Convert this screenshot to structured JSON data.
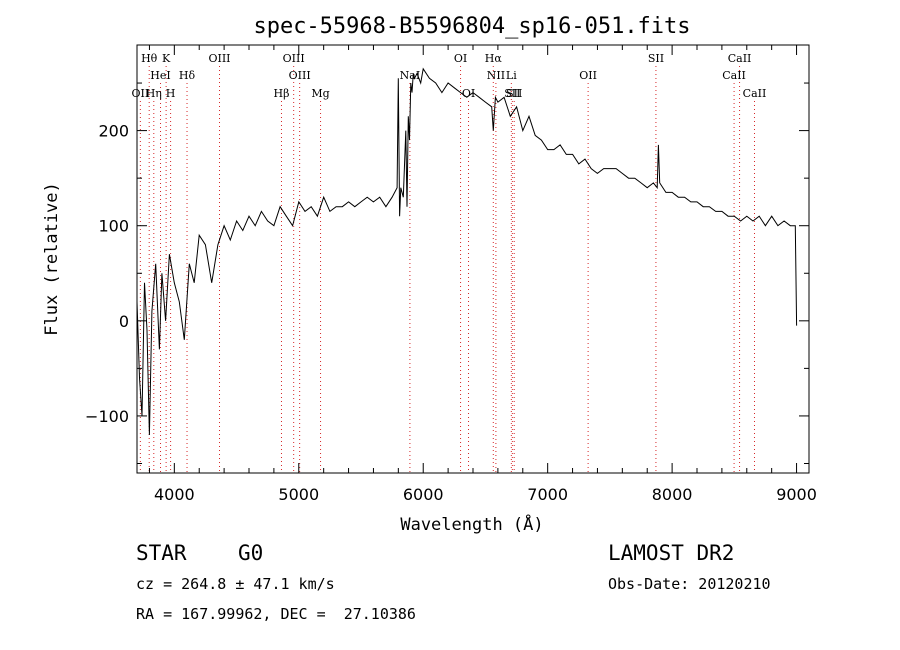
{
  "chart_data": {
    "type": "line",
    "title": "spec-55968-B5596804_sp16-051.fits",
    "xlabel": "Wavelength (Å)",
    "ylabel": "Flux (relative)",
    "xlim": [
      3700,
      9100
    ],
    "ylim": [
      -160,
      290
    ],
    "xticks": [
      4000,
      5000,
      6000,
      7000,
      8000,
      9000
    ],
    "yticks": [
      -100,
      0,
      100,
      200
    ],
    "grid": false,
    "line_color": "#000000",
    "marker_color": "#d62728",
    "series": [
      {
        "x": [
          3700,
          3720,
          3740,
          3760,
          3780,
          3800,
          3820,
          3850,
          3880,
          3900,
          3930,
          3960,
          4000,
          4040,
          4080,
          4120,
          4160,
          4200,
          4250,
          4300,
          4350,
          4400,
          4450,
          4500,
          4550,
          4600,
          4650,
          4700,
          4750,
          4800,
          4850,
          4900,
          4950,
          5000,
          5050,
          5100,
          5150,
          5200,
          5250,
          5300,
          5350,
          5400,
          5450,
          5500,
          5550,
          5600,
          5650,
          5700,
          5750,
          5790,
          5800,
          5810,
          5820,
          5840,
          5860,
          5870,
          5880,
          5890,
          5900,
          5910,
          5920,
          5930,
          5950,
          5980,
          6000,
          6050,
          6100,
          6150,
          6200,
          6250,
          6300,
          6350,
          6400,
          6450,
          6500,
          6550,
          6563,
          6580,
          6600,
          6650,
          6700,
          6750,
          6800,
          6850,
          6900,
          6950,
          7000,
          7050,
          7100,
          7150,
          7200,
          7250,
          7300,
          7350,
          7400,
          7450,
          7500,
          7550,
          7600,
          7650,
          7700,
          7750,
          7800,
          7850,
          7880,
          7890,
          7900,
          7950,
          8000,
          8050,
          8100,
          8150,
          8200,
          8250,
          8300,
          8350,
          8400,
          8450,
          8500,
          8550,
          8600,
          8650,
          8700,
          8750,
          8800,
          8850,
          8900,
          8950,
          8990,
          9000
        ],
        "y": [
          20,
          -60,
          -100,
          40,
          -10,
          -120,
          10,
          60,
          -30,
          50,
          0,
          70,
          40,
          20,
          -20,
          60,
          40,
          90,
          80,
          40,
          80,
          100,
          85,
          105,
          95,
          110,
          100,
          115,
          105,
          100,
          120,
          110,
          100,
          125,
          115,
          120,
          110,
          130,
          115,
          120,
          120,
          125,
          120,
          125,
          130,
          125,
          130,
          120,
          130,
          140,
          255,
          110,
          140,
          130,
          200,
          120,
          215,
          190,
          250,
          240,
          260,
          255,
          260,
          250,
          265,
          255,
          250,
          240,
          250,
          245,
          240,
          235,
          240,
          235,
          230,
          225,
          200,
          235,
          230,
          235,
          215,
          225,
          200,
          215,
          195,
          190,
          180,
          180,
          185,
          175,
          175,
          165,
          170,
          160,
          155,
          160,
          160,
          160,
          155,
          150,
          150,
          145,
          140,
          145,
          140,
          185,
          145,
          135,
          135,
          130,
          130,
          125,
          125,
          120,
          120,
          115,
          115,
          110,
          110,
          105,
          110,
          105,
          110,
          100,
          110,
          100,
          105,
          100,
          100,
          -5
        ]
      }
    ],
    "lines": [
      {
        "name": "Hθ",
        "x": 3798,
        "row": 1
      },
      {
        "name": "K",
        "x": 3934,
        "row": 1
      },
      {
        "name": "OIII",
        "x": 4363,
        "row": 1
      },
      {
        "name": "OIII",
        "x": 4959,
        "row": 1
      },
      {
        "name": "OI",
        "x": 6300,
        "row": 1
      },
      {
        "name": "Hα",
        "x": 6563,
        "row": 1
      },
      {
        "name": "SII",
        "x": 7870,
        "row": 1
      },
      {
        "name": "CaII",
        "x": 8542,
        "row": 1
      },
      {
        "name": "HeI",
        "x": 3889,
        "row": 2
      },
      {
        "name": "Hδ",
        "x": 4102,
        "row": 2
      },
      {
        "name": "OIII",
        "x": 5007,
        "row": 2
      },
      {
        "name": "NaI",
        "x": 5893,
        "row": 2
      },
      {
        "name": "NII",
        "x": 6584,
        "row": 2
      },
      {
        "name": "Li",
        "x": 6708,
        "row": 2
      },
      {
        "name": "OII",
        "x": 7325,
        "row": 2
      },
      {
        "name": "CaII",
        "x": 8498,
        "row": 2
      },
      {
        "name": "OII",
        "x": 3727,
        "row": 3
      },
      {
        "name": "Hη",
        "x": 3835,
        "row": 3
      },
      {
        "name": "H",
        "x": 3970,
        "row": 3
      },
      {
        "name": "Hβ",
        "x": 4861,
        "row": 3
      },
      {
        "name": "Mg",
        "x": 5175,
        "row": 3
      },
      {
        "name": "OI",
        "x": 6364,
        "row": 3
      },
      {
        "name": "SII",
        "x": 6716,
        "row": 3
      },
      {
        "name": "SII",
        "x": 6731,
        "row": 3
      },
      {
        "name": "CaII",
        "x": 8662,
        "row": 3
      }
    ]
  },
  "info": {
    "class": "STAR",
    "subclass": "G0",
    "survey": "LAMOST DR2",
    "cz": "cz = 264.8 ± 47.1 km/s",
    "obs_date": "Obs-Date: 20120210",
    "coords": "RA = 167.99962, DEC =  27.10386"
  }
}
